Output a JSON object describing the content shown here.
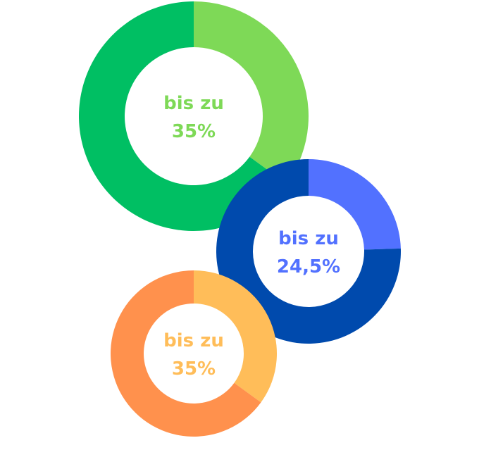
{
  "chart_data": [
    {
      "type": "pie",
      "variant": "donut",
      "labels": [
        "bis zu",
        "35%"
      ],
      "values": [
        35,
        65
      ],
      "colors": {
        "highlight": "#7ED957",
        "rest": "#00BF63",
        "text": "#7ED957"
      }
    },
    {
      "type": "pie",
      "variant": "donut",
      "labels": [
        "bis zu",
        "24,5%"
      ],
      "values": [
        24.5,
        75.5
      ],
      "colors": {
        "highlight": "#5271FF",
        "rest": "#004AAD",
        "text": "#5271FF"
      }
    },
    {
      "type": "pie",
      "variant": "donut",
      "labels": [
        "bis zu",
        "35%"
      ],
      "values": [
        35,
        65
      ],
      "colors": {
        "highlight": "#FFBD59",
        "rest": "#FF914D",
        "text": "#FFBD59"
      }
    }
  ]
}
